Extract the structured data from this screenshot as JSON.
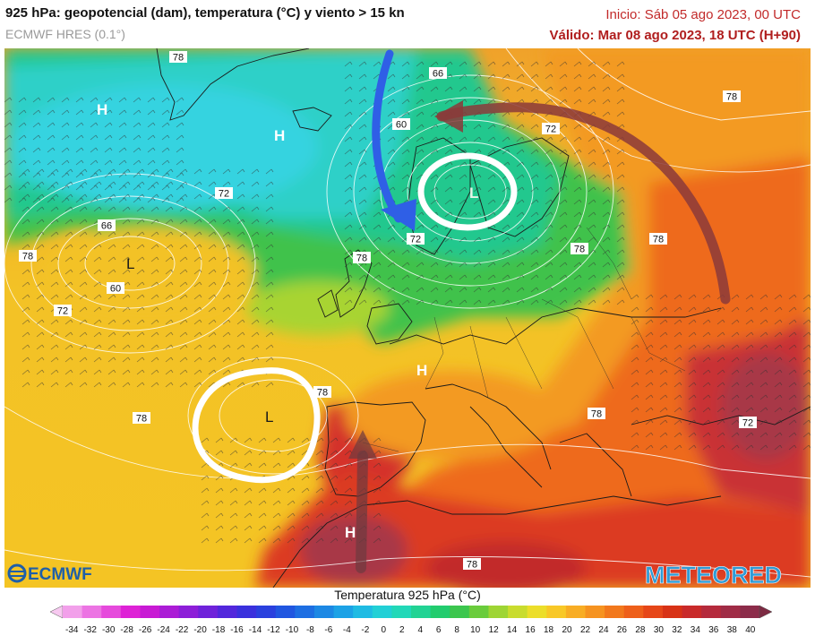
{
  "header": {
    "title": "925 hPa: geopotencial (dam), temperatura (°C) y viento > 15 kn",
    "model": "ECMWF HRES (0.1°)",
    "init": "Inicio: Sáb 05 ago 2023, 00 UTC",
    "valid": "Válido: Mar 08 ago 2023, 18 UTC (H+90)"
  },
  "colors": {
    "highlight_circle": "#ffffff",
    "arrow_cold": "#2f5fe6",
    "arrow_warm": "#8b3a3a",
    "meteored": "#2f9bd6",
    "ecmwf": "#1f5fa8"
  },
  "map": {
    "pressure_centers": [
      {
        "label": "H"
      },
      {
        "label": "H"
      },
      {
        "label": "L"
      },
      {
        "label": "L"
      },
      {
        "label": "L"
      },
      {
        "label": "H"
      },
      {
        "label": "H"
      }
    ],
    "contour_labels": [
      {
        "text": "78"
      },
      {
        "text": "66"
      },
      {
        "text": "60"
      },
      {
        "text": "72"
      },
      {
        "text": "78"
      },
      {
        "text": "72"
      },
      {
        "text": "66"
      },
      {
        "text": "78"
      },
      {
        "text": "60"
      },
      {
        "text": "72"
      },
      {
        "text": "72"
      },
      {
        "text": "78"
      },
      {
        "text": "78"
      },
      {
        "text": "78"
      },
      {
        "text": "78"
      },
      {
        "text": "78"
      },
      {
        "text": "72"
      },
      {
        "text": "78"
      },
      {
        "text": "78"
      }
    ],
    "annotations": [
      "circle-low-scandinavia",
      "circle-low-atlantic",
      "arrow-cold-advection",
      "arrow-warm-advection",
      "arrow-saharan-flow"
    ]
  },
  "logos": {
    "ecmwf": "ECMWF",
    "meteored": "METEORED"
  },
  "colorbar": {
    "title": "Temperatura 925 hPa (°C)",
    "ticks": [
      "-34",
      "-32",
      "-30",
      "-28",
      "-26",
      "-24",
      "-22",
      "-20",
      "-18",
      "-16",
      "-14",
      "-12",
      "-10",
      "-8",
      "-6",
      "-4",
      "-2",
      "0",
      "2",
      "4",
      "6",
      "8",
      "10",
      "12",
      "14",
      "16",
      "18",
      "20",
      "22",
      "24",
      "26",
      "28",
      "30",
      "32",
      "34",
      "36",
      "38",
      "40"
    ],
    "colors": [
      "#f7c9f0",
      "#f2a0ea",
      "#ec74e3",
      "#e64adc",
      "#de22d6",
      "#c81ad4",
      "#ab1cd6",
      "#8d1ed8",
      "#6f22da",
      "#5227dc",
      "#3a30dd",
      "#2a40de",
      "#2056e0",
      "#1d6ee2",
      "#1c88e4",
      "#1ca2e6",
      "#1fbbe3",
      "#22d0d6",
      "#22d8b8",
      "#22d394",
      "#22cc6e",
      "#3cc64e",
      "#6acc3c",
      "#9ed534",
      "#c9dc2e",
      "#ecde2a",
      "#f8c827",
      "#f8ad24",
      "#f69320",
      "#f2781c",
      "#ee5f1a",
      "#e64618",
      "#d83216",
      "#c92a2a",
      "#b52a3c",
      "#a02c46",
      "#8c2c4a",
      "#7c2a42"
    ]
  }
}
